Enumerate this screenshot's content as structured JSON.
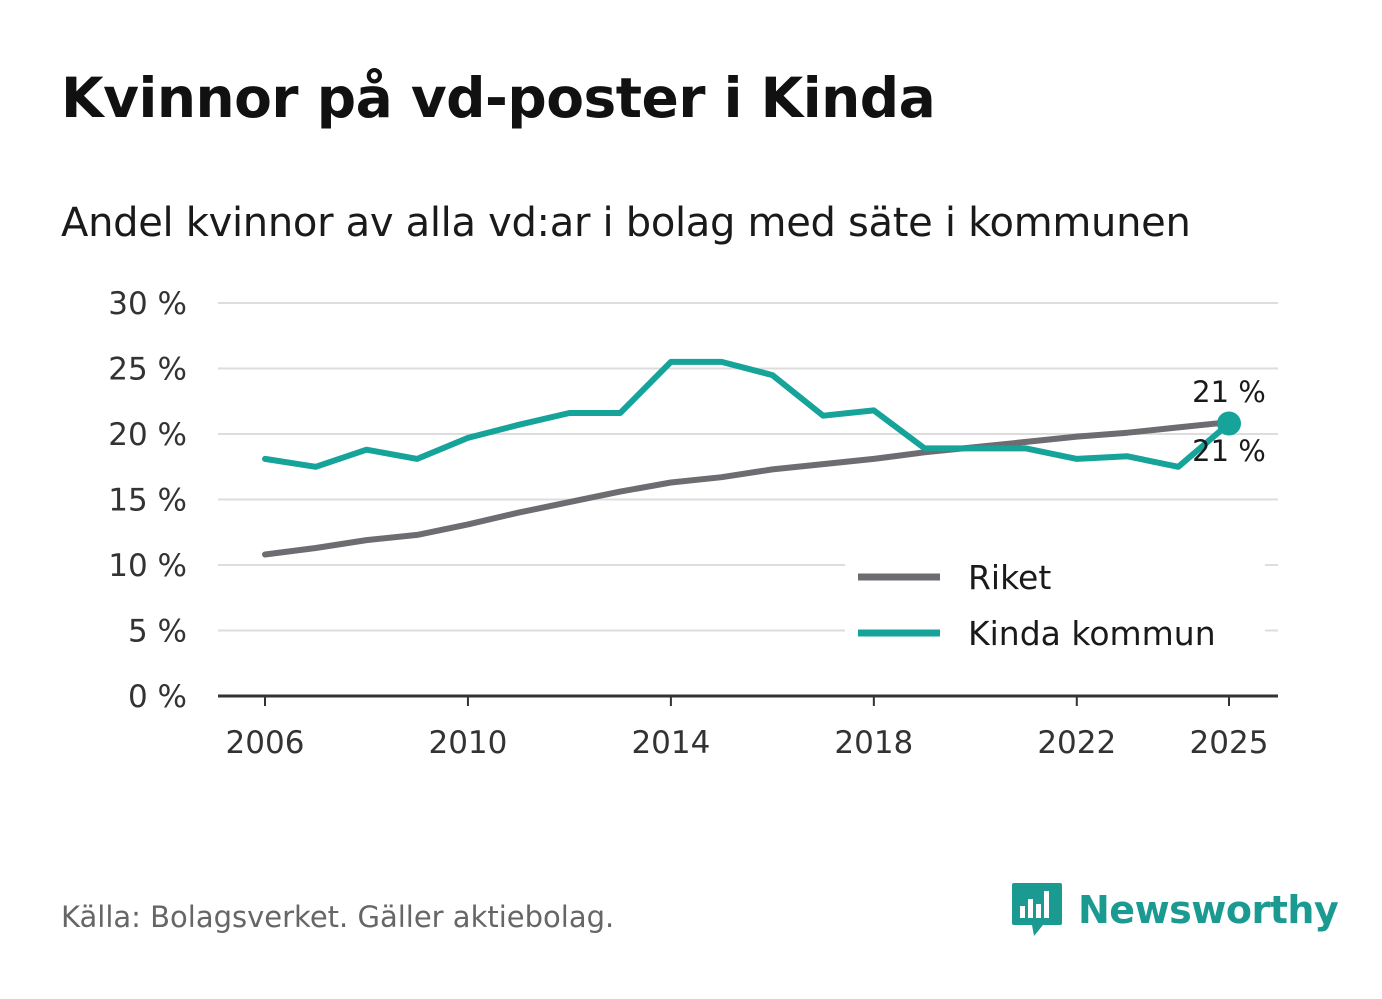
{
  "title": "Kvinnor på vd-poster i Kinda",
  "subtitle": "Andel kvinnor av alla vd:ar i bolag med säte i kommunen",
  "source": "Källa: Bolagsverket. Gäller aktiebolag.",
  "brand": {
    "name": "Newsworthy",
    "icon": "newsworthy-logo-icon",
    "color": "#1a9a91"
  },
  "colors": {
    "riket": "#6d6c70",
    "kinda": "#16a39a",
    "grid": "#dddddd",
    "axis": "#333333"
  },
  "chart_data": {
    "type": "line",
    "title": "Kvinnor på vd-poster i Kinda",
    "subtitle": "Andel kvinnor av alla vd:ar i bolag med säte i kommunen",
    "xlabel": "",
    "ylabel": "",
    "x": [
      2006,
      2007,
      2008,
      2009,
      2010,
      2011,
      2012,
      2013,
      2014,
      2015,
      2016,
      2017,
      2018,
      2019,
      2020,
      2021,
      2022,
      2023,
      2024,
      2025
    ],
    "xticks": [
      2006,
      2010,
      2014,
      2018,
      2022,
      2025
    ],
    "xlim": [
      2005,
      2026
    ],
    "ylim": [
      0,
      30
    ],
    "yticks": [
      0,
      5,
      10,
      15,
      20,
      25,
      30
    ],
    "ytick_labels": [
      "0 %",
      "5 %",
      "10 %",
      "15 %",
      "20 %",
      "25 %",
      "30 %"
    ],
    "grid": true,
    "legend_position": "bottom-right",
    "series": [
      {
        "name": "Riket",
        "color": "#6d6c70",
        "values": [
          10.8,
          11.3,
          11.9,
          12.3,
          13.1,
          14.0,
          14.8,
          15.6,
          16.3,
          16.7,
          17.3,
          17.7,
          18.1,
          18.6,
          19.0,
          19.4,
          19.8,
          20.1,
          20.5,
          20.9
        ],
        "end_label": "21 %"
      },
      {
        "name": "Kinda kommun",
        "color": "#16a39a",
        "values": [
          18.1,
          17.5,
          18.8,
          18.1,
          19.7,
          20.7,
          21.6,
          21.6,
          25.5,
          25.5,
          24.5,
          21.4,
          21.8,
          18.9,
          18.9,
          18.9,
          18.1,
          18.3,
          17.5,
          20.8
        ],
        "end_label": "21 %"
      }
    ]
  }
}
